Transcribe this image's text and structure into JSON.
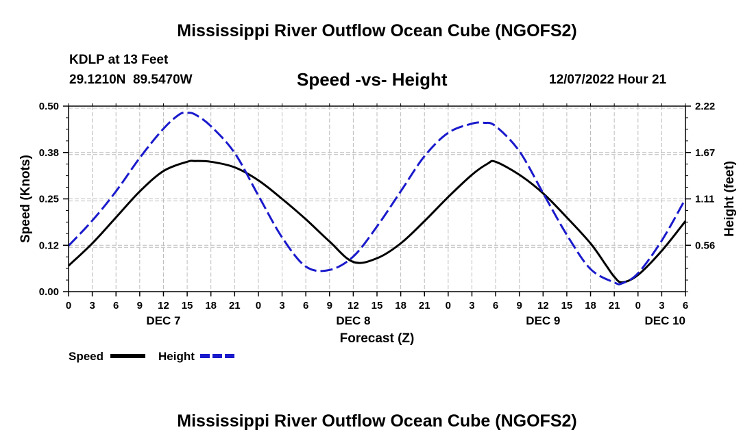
{
  "page_title": "Mississippi River Outflow Ocean Cube (NGOFS2)",
  "footer_title": "Mississippi River Outflow Ocean Cube (NGOFS2)",
  "station": {
    "name": "KDLP at 13 Feet",
    "coords": "29.1210N  89.5470W"
  },
  "issue_time": "12/07/2022 Hour 21",
  "legend": {
    "speed": "Speed",
    "height": "Height"
  },
  "colors": {
    "speed": "#000000",
    "height": "#1a1acc",
    "grid": "#bbbbbb"
  },
  "chart_data": {
    "type": "line",
    "title": "Speed -vs- Height",
    "xlabel": "Forecast (Z)",
    "ylabel_left": "Speed (Knots)",
    "ylabel_right": "Height (feet)",
    "x_ticks": [
      "0",
      "3",
      "6",
      "9",
      "12",
      "15",
      "18",
      "21",
      "0",
      "3",
      "6",
      "9",
      "12",
      "15",
      "18",
      "21",
      "0",
      "3",
      "6",
      "9",
      "12",
      "15",
      "18",
      "21",
      "0",
      "3",
      "6"
    ],
    "day_labels": [
      {
        "label": "DEC 7",
        "tick_index": 4
      },
      {
        "label": "DEC 8",
        "tick_index": 12
      },
      {
        "label": "DEC 9",
        "tick_index": 20
      },
      {
        "label": "DEC 10",
        "tick_index": 26
      }
    ],
    "xlim": [
      0,
      78
    ],
    "y_left": {
      "range": [
        0,
        0.5
      ],
      "ticks": [
        "0.00",
        "0.12",
        "0.25",
        "0.38",
        "0.50"
      ]
    },
    "y_right": {
      "range": [
        0,
        2.22
      ],
      "ticks": [
        "0.56",
        "1.11",
        "1.67",
        "2.22"
      ]
    },
    "series": [
      {
        "name": "Speed",
        "axis": "left",
        "style": "solid",
        "x": [
          0,
          3,
          6,
          9,
          12,
          15,
          16,
          18,
          21,
          24,
          27,
          30,
          33,
          36,
          39,
          42,
          45,
          48,
          51,
          53,
          54,
          57,
          60,
          63,
          66,
          68,
          69,
          70,
          72,
          75,
          78
        ],
        "y": [
          0.07,
          0.13,
          0.2,
          0.27,
          0.325,
          0.35,
          0.352,
          0.35,
          0.335,
          0.3,
          0.25,
          0.195,
          0.135,
          0.08,
          0.09,
          0.13,
          0.19,
          0.255,
          0.315,
          0.345,
          0.35,
          0.315,
          0.265,
          0.2,
          0.13,
          0.07,
          0.04,
          0.025,
          0.045,
          0.11,
          0.19
        ]
      },
      {
        "name": "Height",
        "axis": "right",
        "style": "dashed",
        "x": [
          0,
          3,
          6,
          9,
          12,
          14,
          15,
          16,
          18,
          21,
          24,
          27,
          30,
          33,
          36,
          39,
          42,
          45,
          48,
          51,
          52.5,
          54,
          57,
          60,
          63,
          66,
          69,
          70,
          72,
          75,
          78
        ],
        "y": [
          0.55,
          0.85,
          1.2,
          1.6,
          1.95,
          2.12,
          2.14,
          2.12,
          1.98,
          1.66,
          1.15,
          0.65,
          0.3,
          0.26,
          0.42,
          0.78,
          1.2,
          1.62,
          1.9,
          2.01,
          2.02,
          1.98,
          1.68,
          1.18,
          0.68,
          0.27,
          0.11,
          0.1,
          0.22,
          0.61,
          1.11
        ]
      }
    ]
  }
}
